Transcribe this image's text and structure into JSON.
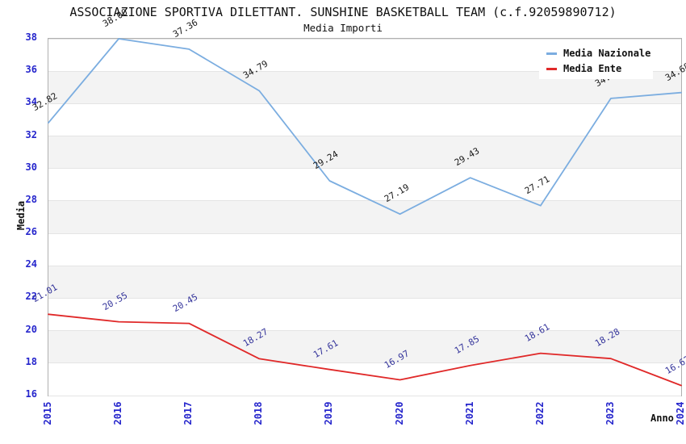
{
  "header": {
    "title": "ASSOCIAZIONE SPORTIVA DILETTANT. SUNSHINE BASKETBALL TEAM (c.f.92059890712)",
    "subtitle": "Media Importi"
  },
  "legend": {
    "items": [
      {
        "label": "Media Nazionale",
        "color": "#7bade0"
      },
      {
        "label": "Media Ente",
        "color": "#e02929"
      }
    ]
  },
  "axes": {
    "x_label": "Anno",
    "y_label": "Media",
    "tick_color": "#2525cc"
  },
  "chart_data": {
    "type": "line",
    "title": "ASSOCIAZIONE SPORTIVA DILETTANT. SUNSHINE BASKETBALL TEAM (c.f.92059890712)",
    "subtitle": "Media Importi",
    "xlabel": "Anno",
    "ylabel": "Media",
    "x": [
      2015,
      2016,
      2017,
      2018,
      2019,
      2020,
      2021,
      2022,
      2023,
      2024
    ],
    "series": [
      {
        "name": "Media Nazionale",
        "color": "#7bade0",
        "label_color": "#1a1a1a",
        "values": [
          32.82,
          38.0,
          37.36,
          34.79,
          29.24,
          27.19,
          29.43,
          27.71,
          34.32,
          34.68
        ]
      },
      {
        "name": "Media Ente",
        "color": "#e02929",
        "label_color": "#34349b",
        "values": [
          21.01,
          20.55,
          20.45,
          18.27,
          17.61,
          16.97,
          17.85,
          18.61,
          18.28,
          16.62
        ]
      }
    ],
    "ylim": [
      16,
      38
    ],
    "ytick_step": 2,
    "grid": "alternating horizontal bands",
    "band_color": "#f3f3f3",
    "gridline_color": "#e4e4e4",
    "legend_position": "top-right"
  }
}
